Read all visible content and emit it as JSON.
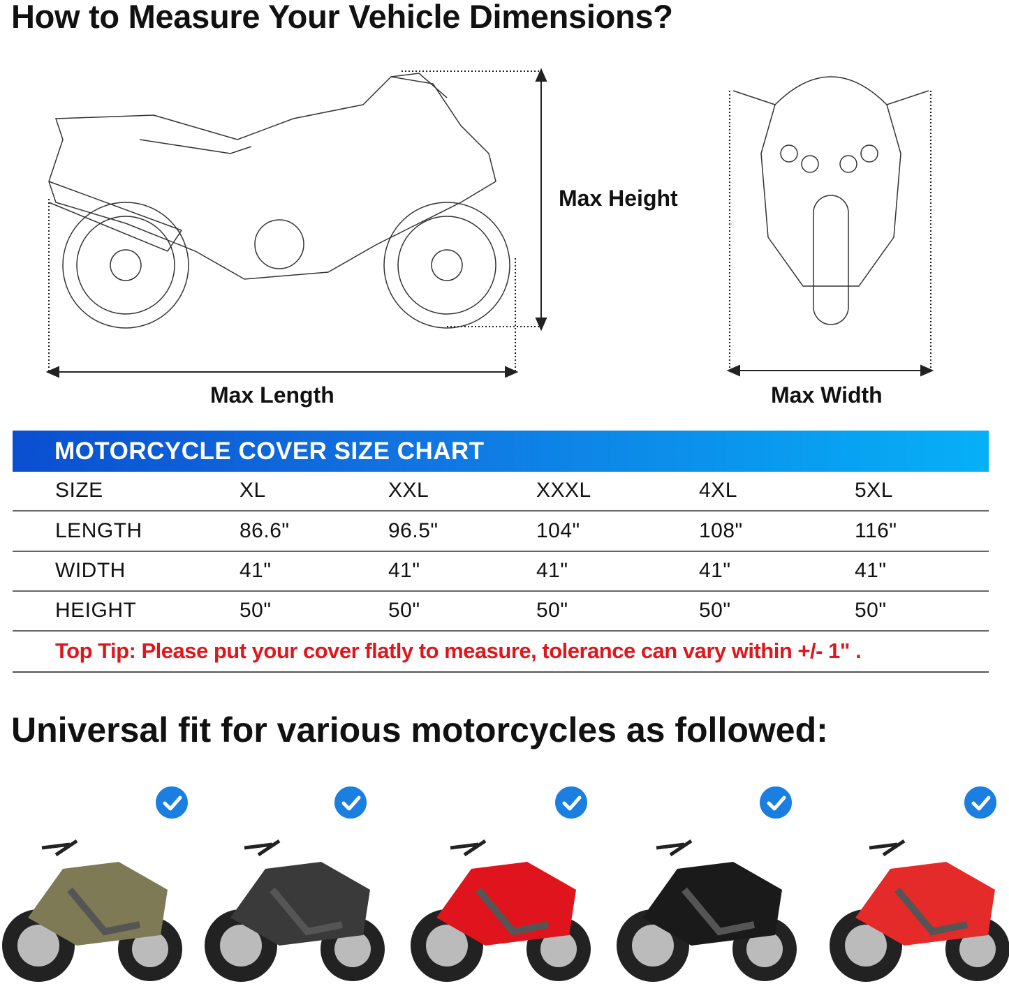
{
  "title": "How to Measure Your Vehicle Dimensions?",
  "dimensions": {
    "height": "Max Height",
    "length": "Max Length",
    "width": "Max Width"
  },
  "chart": {
    "title": "MOTORCYCLE COVER SIZE CHART",
    "accent": "#1173e0",
    "rows": [
      {
        "label": "SIZE",
        "values": [
          "XL",
          "XXL",
          "XXXL",
          "4XL",
          "5XL"
        ]
      },
      {
        "label": "LENGTH",
        "values": [
          "86.6\"",
          "96.5\"",
          "104\"",
          "108\"",
          "116\""
        ]
      },
      {
        "label": "WIDTH",
        "values": [
          "41\"",
          "41\"",
          "41\"",
          "41\"",
          "41\""
        ]
      },
      {
        "label": "HEIGHT",
        "values": [
          "50\"",
          "50\"",
          "50\"",
          "50\"",
          "50\""
        ]
      }
    ],
    "tip": "Top Tip: Please put your cover flatly to measure, tolerance can vary within +/- 1\" ."
  },
  "fit_title": "Universal fit for various motorcycles as followed:",
  "bikes": [
    {
      "type": "cruiser",
      "color": "#7d7a55",
      "checked": true
    },
    {
      "type": "scooter",
      "color": "#3a3a3a",
      "checked": true
    },
    {
      "type": "sport-bike",
      "color": "#e0141c",
      "checked": true
    },
    {
      "type": "chopper",
      "color": "#1a1a1a",
      "checked": true
    },
    {
      "type": "vespa-scooter",
      "color": "#e52a2a",
      "checked": true
    }
  ]
}
